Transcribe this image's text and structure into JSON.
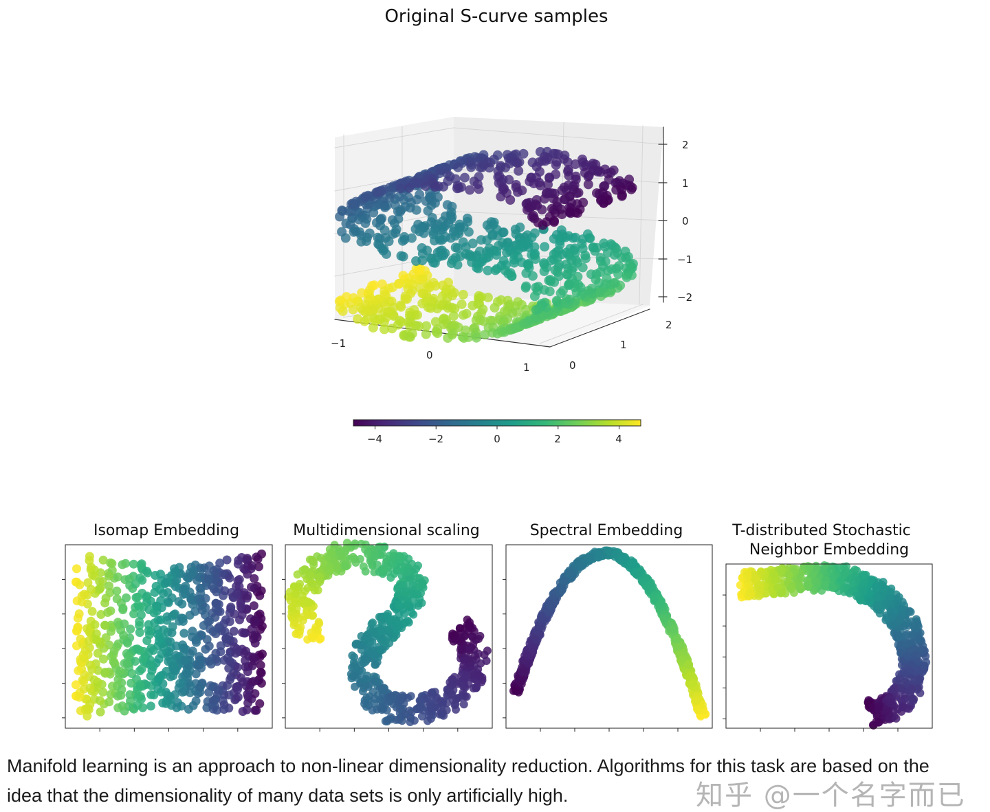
{
  "chart_data": [
    {
      "type": "scatter",
      "title": "Original S-curve samples",
      "projection": "3d",
      "x_ticks": [
        "−1",
        "0",
        "1"
      ],
      "y_ticks": [
        "0",
        "1",
        "2"
      ],
      "z_ticks": [
        "2",
        "1",
        "0",
        "−1",
        "−2"
      ],
      "xlim": [
        -1,
        1
      ],
      "ylim": [
        0,
        2
      ],
      "zlim": [
        -2,
        2
      ],
      "color_range": [
        -4.71,
        4.71
      ],
      "colormap": "viridis",
      "colorbar": {
        "ticks": [
          "−4",
          "−2",
          "0",
          "2",
          "4"
        ],
        "tick_values": [
          -4,
          -2,
          0,
          2,
          4
        ],
        "range": [
          -4.71,
          4.71
        ]
      }
    },
    {
      "type": "scatter",
      "title": "Isomap Embedding"
    },
    {
      "type": "scatter",
      "title": "Multidimensional scaling"
    },
    {
      "type": "scatter",
      "title": "Spectral Embedding"
    },
    {
      "type": "scatter",
      "title_line1": "T-distributed Stochastic",
      "title_line2": "Neighbor Embedding"
    }
  ],
  "paragraph": {
    "line1": "Manifold learning is an approach to non-linear dimensionality reduction. Algorithms for this task are based on the",
    "line2": "idea that the dimensionality of many data sets is only artificially high."
  },
  "watermark": "知乎 @一个名字而已",
  "colors": {
    "viridis": [
      "#440154",
      "#482878",
      "#3e4989",
      "#31688e",
      "#26828e",
      "#1f9e89",
      "#35b779",
      "#6ece58",
      "#b5de2b",
      "#fde725"
    ]
  }
}
